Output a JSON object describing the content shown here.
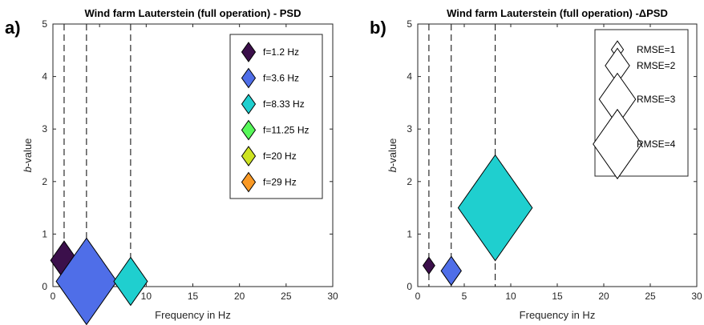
{
  "chart_data": [
    {
      "type": "scatter",
      "panel_label": "a)",
      "title": "Wind farm Lauterstein (full operation) - PSD",
      "xlabel": "Frequency in Hz",
      "ylabel_italic": "b",
      "ylabel_rest": "-value",
      "xlim": [
        0,
        30
      ],
      "ylim": [
        0,
        5
      ],
      "xticks": [
        "0",
        "5",
        "10",
        "15",
        "20",
        "25",
        "30"
      ],
      "yticks": [
        "0",
        "1",
        "2",
        "3",
        "4",
        "5"
      ],
      "grid": false,
      "legend_position": "top-right",
      "dashed_lines_x": [
        1.2,
        3.6,
        8.33
      ],
      "points": [
        {
          "x": 1.2,
          "y": 0.5,
          "rmse": 1.6,
          "color": "#3b0f4b"
        },
        {
          "x": 3.6,
          "y": 0.1,
          "rmse": 3.6,
          "color": "#4f6ee8"
        },
        {
          "x": 8.33,
          "y": 0.1,
          "rmse": 2.0,
          "color": "#1fcfcf"
        }
      ],
      "legend": [
        {
          "label": "f=1.2 Hz",
          "color": "#3b0f4b"
        },
        {
          "label": "f=3.6 Hz",
          "color": "#4f6ee8"
        },
        {
          "label": "f=8.33 Hz",
          "color": "#1fcfcf"
        },
        {
          "label": "f=11.25 Hz",
          "color": "#58f85a"
        },
        {
          "label": "f=20 Hz",
          "color": "#cde322"
        },
        {
          "label": "f=29 Hz",
          "color": "#f99925"
        }
      ]
    },
    {
      "type": "scatter",
      "panel_label": "b)",
      "title": "Wind farm Lauterstein (full operation) -ΔPSD",
      "xlabel": "Frequency in Hz",
      "ylabel_italic": "b",
      "ylabel_rest": "-value",
      "xlim": [
        0,
        30
      ],
      "ylim": [
        0,
        5
      ],
      "xticks": [
        "0",
        "5",
        "10",
        "15",
        "20",
        "25",
        "30"
      ],
      "yticks": [
        "0",
        "1",
        "2",
        "3",
        "4",
        "5"
      ],
      "grid": false,
      "legend_position": "top-right",
      "dashed_lines_x": [
        1.2,
        3.6,
        8.33
      ],
      "points": [
        {
          "x": 1.2,
          "y": 0.4,
          "rmse": 0.7,
          "color": "#3b0f4b"
        },
        {
          "x": 3.6,
          "y": 0.3,
          "rmse": 1.2,
          "color": "#4f6ee8"
        },
        {
          "x": 8.33,
          "y": 1.5,
          "rmse": 4.4,
          "color": "#1fcfcf"
        }
      ],
      "legend": [
        {
          "label": "RMSE=1",
          "rmse": 1
        },
        {
          "label": "RMSE=2",
          "rmse": 2
        },
        {
          "label": "RMSE=3",
          "rmse": 3
        },
        {
          "label": "RMSE=4",
          "rmse": 4
        }
      ]
    }
  ]
}
